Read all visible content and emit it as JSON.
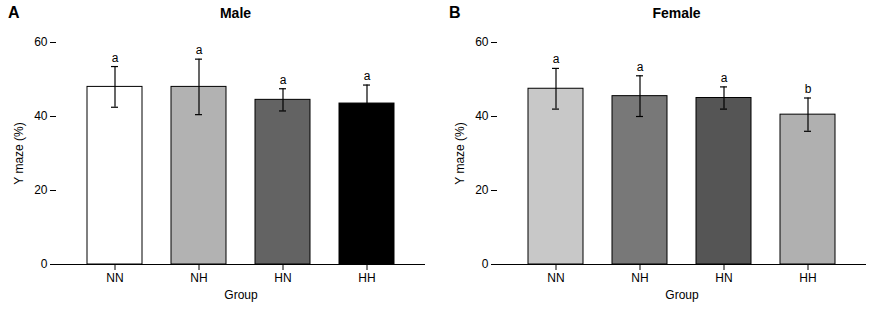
{
  "chart_data": [
    {
      "type": "bar",
      "title": "Male",
      "panel_label": "A",
      "categories": [
        "NN",
        "NH",
        "HN",
        "HH"
      ],
      "values": [
        48.0,
        48.0,
        44.5,
        43.5
      ],
      "errors": [
        5.5,
        7.5,
        3.0,
        5.0
      ],
      "annotations": [
        "a",
        "a",
        "a",
        "a"
      ],
      "colors": [
        "#ffffff",
        "#b2b2b2",
        "#636363",
        "#000000"
      ],
      "xlabel": "Group",
      "ylabel": "Y maze (%)",
      "ylim": [
        0,
        60
      ],
      "yticks": [
        0,
        20,
        40,
        60
      ],
      "grid": false
    },
    {
      "type": "bar",
      "title": "Female",
      "panel_label": "B",
      "categories": [
        "NN",
        "NH",
        "HN",
        "HH"
      ],
      "values": [
        47.5,
        45.5,
        45.0,
        40.5
      ],
      "errors": [
        5.5,
        5.5,
        3.0,
        4.5
      ],
      "annotations": [
        "a",
        "a",
        "a",
        "b"
      ],
      "colors": [
        "#c8c8c8",
        "#787878",
        "#555555",
        "#b0b0b0"
      ],
      "xlabel": "Group",
      "ylabel": "Y maze (%)",
      "ylim": [
        0,
        60
      ],
      "yticks": [
        0,
        20,
        40,
        60
      ],
      "grid": false
    }
  ]
}
